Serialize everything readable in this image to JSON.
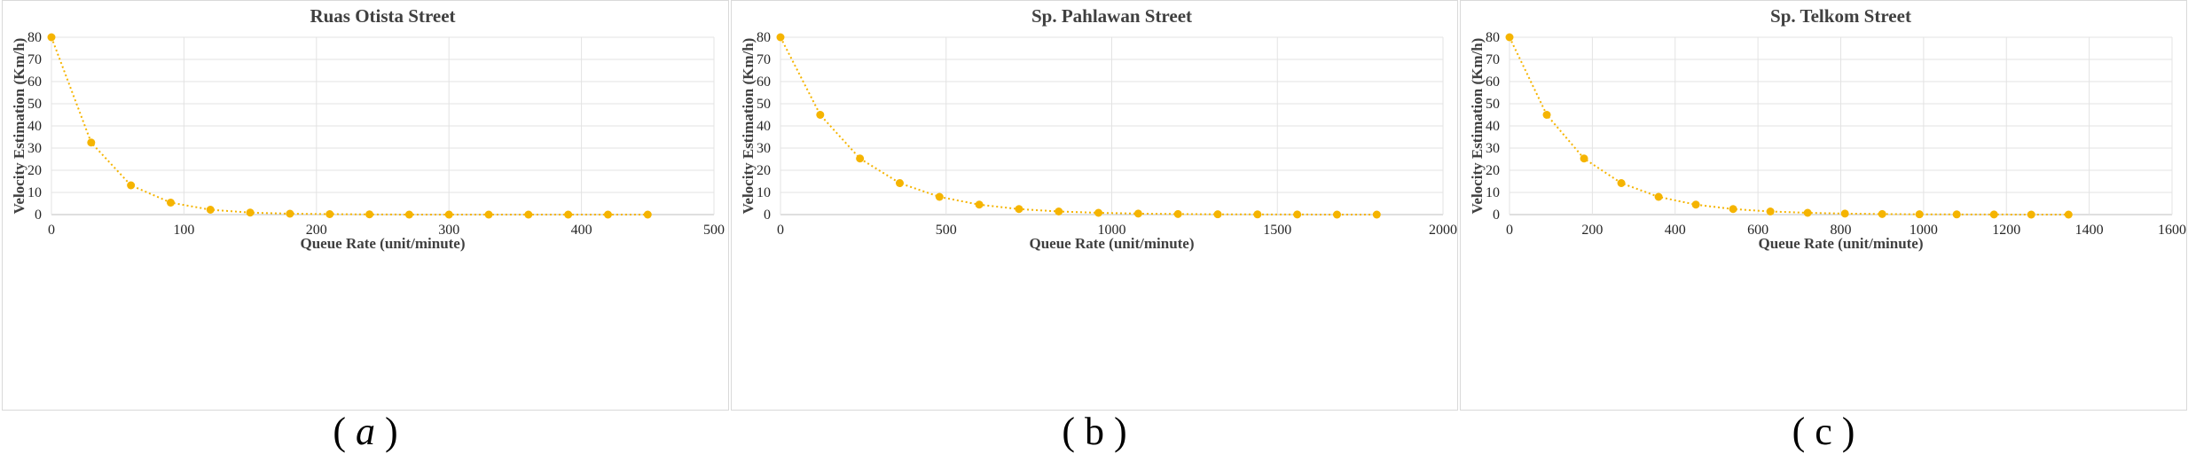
{
  "charts": [
    {
      "id": "a",
      "caption_open": "(",
      "caption_letter": "a",
      "caption_close": ")",
      "chart_data": {
        "type": "scatter",
        "title": "Ruas Otista Street",
        "xlabel": "Queue Rate (unit/minute)",
        "ylabel": "Velocity Estimation (Km/h)",
        "xlim": [
          0,
          500
        ],
        "ylim": [
          0,
          80
        ],
        "xticks": [
          0,
          100,
          200,
          300,
          400,
          500
        ],
        "yticks": [
          0,
          10,
          20,
          30,
          40,
          50,
          60,
          70,
          80
        ],
        "grid": true,
        "trendline": "dotted exponential",
        "color": "#f5b400",
        "series": [
          {
            "x": [
              0,
              30,
              60,
              90,
              120,
              150,
              180,
              210,
              240,
              270,
              300,
              330,
              360,
              390,
              420,
              450
            ],
            "y": [
              80,
              32.5,
              13.2,
              5.4,
              2.2,
              0.9,
              0.4,
              0.2,
              0.1,
              0,
              0,
              0,
              0,
              0,
              0,
              0
            ]
          }
        ]
      }
    },
    {
      "id": "b",
      "caption_open": "(",
      "caption_letter": "b",
      "caption_close": ")",
      "chart_data": {
        "type": "scatter",
        "title": "Sp. Pahlawan Street",
        "xlabel": "Queue Rate (unit/minute)",
        "ylabel": "Velocity Estimation (Km/h)",
        "xlim": [
          0,
          2000
        ],
        "ylim": [
          0,
          80
        ],
        "xticks": [
          0,
          500,
          1000,
          1500,
          2000
        ],
        "yticks": [
          0,
          10,
          20,
          30,
          40,
          50,
          60,
          70,
          80
        ],
        "grid": true,
        "trendline": "dotted exponential",
        "color": "#f5b400",
        "series": [
          {
            "x": [
              0,
              120,
              240,
              360,
              480,
              600,
              720,
              840,
              960,
              1080,
              1200,
              1320,
              1440,
              1560,
              1680,
              1800
            ],
            "y": [
              80,
              45,
              25.3,
              14.2,
              8,
              4.5,
              2.5,
              1.4,
              0.8,
              0.45,
              0.25,
              0.14,
              0.08,
              0.05,
              0,
              0
            ]
          }
        ]
      }
    },
    {
      "id": "c",
      "caption_open": "(",
      "caption_letter": "c",
      "caption_close": ")",
      "chart_data": {
        "type": "scatter",
        "title": "Sp. Telkom Street",
        "xlabel": "Queue Rate (unit/minute)",
        "ylabel": "Velocity Estimation (Km/h)",
        "xlim": [
          0,
          1600
        ],
        "ylim": [
          0,
          80
        ],
        "xticks": [
          0,
          200,
          400,
          600,
          800,
          1000,
          1200,
          1400,
          1600
        ],
        "yticks": [
          0,
          10,
          20,
          30,
          40,
          50,
          60,
          70,
          80
        ],
        "grid": true,
        "trendline": "dotted exponential",
        "color": "#f5b400",
        "series": [
          {
            "x": [
              0,
              90,
              180,
              270,
              360,
              450,
              540,
              630,
              720,
              810,
              900,
              990,
              1080,
              1170,
              1260,
              1350
            ],
            "y": [
              80,
              45,
              25.3,
              14.2,
              8,
              4.5,
              2.5,
              1.4,
              0.8,
              0.45,
              0.25,
              0.14,
              0.08,
              0.05,
              0,
              0
            ]
          }
        ]
      }
    }
  ]
}
